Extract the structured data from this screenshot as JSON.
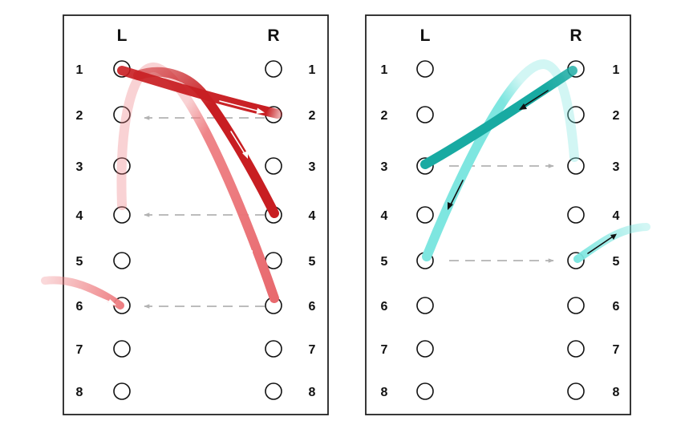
{
  "panels": [
    {
      "id": "left",
      "left_header": "L",
      "right_header": "R",
      "rows": [
        "1",
        "2",
        "3",
        "4",
        "5",
        "6",
        "7",
        "8"
      ],
      "color_dark": "#c81e22",
      "color_light": "#ee7f83",
      "arrow_color": "#ffffff",
      "strands": [
        {
          "from": "L1",
          "to": "R2",
          "shade": "dark"
        },
        {
          "from": "R2",
          "to": "R4",
          "shade": "dark"
        },
        {
          "from": "L4",
          "to": "R6",
          "shade": "light"
        },
        {
          "from": "L6",
          "to": "off-left",
          "shade": "light"
        }
      ],
      "guides": [
        {
          "from": "R2",
          "to": "L2"
        },
        {
          "from": "R4",
          "to": "L4"
        },
        {
          "from": "R6",
          "to": "L6"
        }
      ]
    },
    {
      "id": "right",
      "left_header": "L",
      "right_header": "R",
      "rows": [
        "1",
        "2",
        "3",
        "4",
        "5",
        "6",
        "7",
        "8"
      ],
      "color_dark": "#18aaa2",
      "color_light": "#7ee6e0",
      "arrow_color": "#111111",
      "strands": [
        {
          "from": "R1",
          "to": "L3",
          "shade": "dark"
        },
        {
          "from": "R3",
          "to": "L5",
          "shade": "light"
        },
        {
          "from": "R5",
          "to": "off-right",
          "shade": "light"
        }
      ],
      "guides": [
        {
          "from": "L3",
          "to": "R3"
        },
        {
          "from": "L5",
          "to": "R5"
        }
      ]
    }
  ]
}
